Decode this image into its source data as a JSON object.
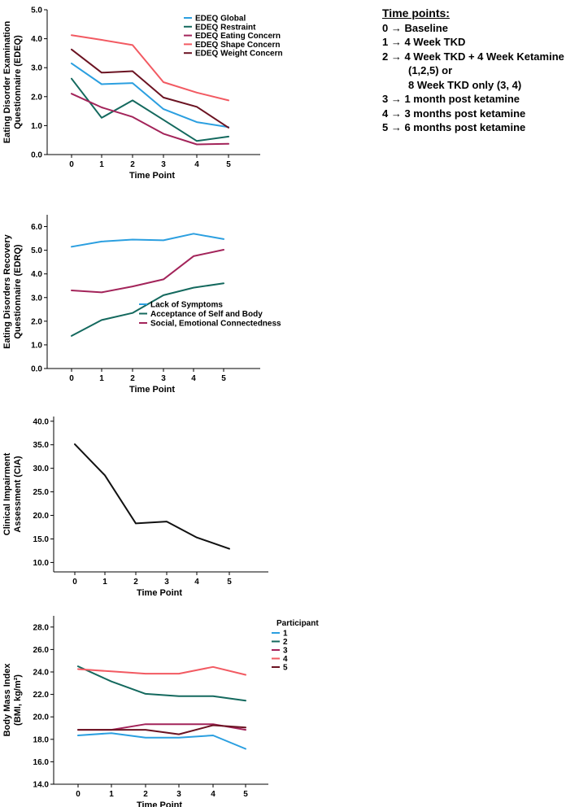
{
  "time_points_note": {
    "title": "Time points:",
    "lines": [
      "0 → Baseline",
      "1 → 4 Week TKD",
      "2 → 4 Week TKD + 4 Week Ketamine",
      "(1,2,5) or",
      "8 Week TKD only (3, 4)",
      "3 → 1 month post ketamine",
      "4 → 3 months post ketamine",
      "5 → 6 months post ketamine"
    ]
  },
  "colors": {
    "blue": "#2B9FE0",
    "teal": "#14695E",
    "magenta": "#A3245A",
    "salmon": "#F25A62",
    "maroon": "#6B1322",
    "black": "#111111"
  },
  "chart_data": [
    {
      "id": "edeq",
      "type": "line",
      "title": "",
      "xlabel": "Time Point",
      "ylabel": [
        "Eating Disorder Examination",
        "Questionnaire (EDEQ)"
      ],
      "x": [
        0,
        1,
        2,
        3,
        4,
        5
      ],
      "ylim": [
        0,
        5
      ],
      "yticks": [
        "0.0",
        "1.0",
        "2.0",
        "3.0",
        "4.0",
        "5.0"
      ],
      "legend_position": "top-center",
      "series": [
        {
          "name": "EDEQ Global",
          "color": "#2B9FE0",
          "values": [
            3.15,
            2.43,
            2.47,
            1.57,
            1.12,
            0.95
          ]
        },
        {
          "name": "EDEQ Restraint",
          "color": "#14695E",
          "values": [
            2.62,
            1.27,
            1.87,
            1.2,
            0.47,
            0.62
          ]
        },
        {
          "name": "EDEQ Eating Concern",
          "color": "#A3245A",
          "values": [
            2.1,
            1.63,
            1.3,
            0.72,
            0.35,
            0.37
          ]
        },
        {
          "name": "EDEQ Shape Concern",
          "color": "#F25A62",
          "values": [
            4.12,
            3.96,
            3.78,
            2.5,
            2.14,
            1.87
          ]
        },
        {
          "name": "EDEQ Weight Concern",
          "color": "#6B1322",
          "values": [
            3.63,
            2.83,
            2.88,
            1.97,
            1.65,
            0.93
          ]
        }
      ]
    },
    {
      "id": "edrq",
      "type": "line",
      "title": "",
      "xlabel": "Time Point",
      "ylabel": [
        "Eating Disorders Recovery",
        "Questionnaire (EDRQ)"
      ],
      "x": [
        0,
        1,
        2,
        3,
        4,
        5
      ],
      "ylim": [
        0,
        6.5
      ],
      "yticks": [
        "0.0",
        "1.0",
        "2.0",
        "3.0",
        "4.0",
        "5.0",
        "6.0"
      ],
      "legend_position": "bottom-center",
      "series": [
        {
          "name": "Lack of Symptoms",
          "color": "#2B9FE0",
          "values": [
            5.15,
            5.37,
            5.45,
            5.42,
            5.7,
            5.47
          ]
        },
        {
          "name": "Acceptance of Self and Body",
          "color": "#14695E",
          "values": [
            1.38,
            2.05,
            2.35,
            3.1,
            3.42,
            3.6
          ]
        },
        {
          "name": "Social, Emotional Connectedness",
          "color": "#A3245A",
          "values": [
            3.3,
            3.22,
            3.47,
            3.77,
            4.75,
            5.02
          ]
        }
      ]
    },
    {
      "id": "cia",
      "type": "line",
      "title": "",
      "xlabel": "Time Point",
      "ylabel": [
        "Clinical Impairment",
        "Assessment (CIA)"
      ],
      "x": [
        0,
        1,
        2,
        3,
        4,
        5
      ],
      "ylim": [
        8,
        41
      ],
      "yticks": [
        "10.0",
        "15.0",
        "20.0",
        "25.0",
        "30.0",
        "35.0",
        "40.0"
      ],
      "legend_position": "none",
      "series": [
        {
          "name": "CIA",
          "color": "#111111",
          "values": [
            35.1,
            28.5,
            18.3,
            18.7,
            15.3,
            12.9
          ]
        }
      ]
    },
    {
      "id": "bmi",
      "type": "line",
      "title": "",
      "xlabel": "Time Point",
      "ylabel": [
        "Body Mass Index",
        "(BMI, kg/m²)"
      ],
      "x": [
        0,
        1,
        2,
        3,
        4,
        5
      ],
      "ylim": [
        14,
        29
      ],
      "yticks": [
        "14.0",
        "16.0",
        "18.0",
        "20.0",
        "22.0",
        "24.0",
        "26.0",
        "28.0"
      ],
      "legend_title": "Participant",
      "legend_position": "outside-right",
      "series": [
        {
          "name": "1",
          "color": "#2B9FE0",
          "values": [
            18.35,
            18.55,
            18.15,
            18.15,
            18.35,
            17.15
          ]
        },
        {
          "name": "2",
          "color": "#14695E",
          "values": [
            24.5,
            23.15,
            22.05,
            21.85,
            21.85,
            21.45
          ]
        },
        {
          "name": "3",
          "color": "#A3245A",
          "values": [
            18.85,
            18.85,
            19.35,
            19.35,
            19.35,
            18.85
          ]
        },
        {
          "name": "4",
          "color": "#F25A62",
          "values": [
            24.25,
            24.05,
            23.85,
            23.85,
            24.45,
            23.75
          ]
        },
        {
          "name": "5",
          "color": "#6B1322",
          "values": [
            18.85,
            18.85,
            18.85,
            18.45,
            19.25,
            19.05
          ]
        }
      ]
    }
  ]
}
